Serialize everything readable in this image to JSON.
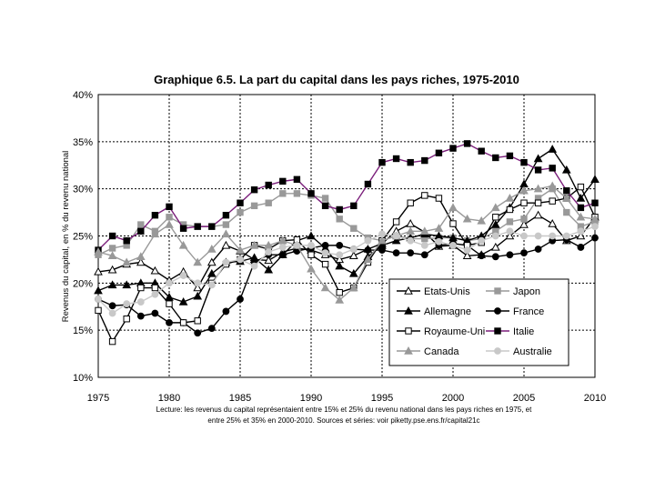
{
  "chart_data": {
    "type": "line",
    "title": "Graphique 6.5. La part du capital dans les pays riches, 1975-2010",
    "ylabel": "Revenus du capital, en % du revenu national",
    "xlabel": "",
    "xlim": [
      1975,
      2010
    ],
    "ylim": [
      0.1,
      0.4
    ],
    "xticks": [
      1975,
      1980,
      1985,
      1990,
      1995,
      2000,
      2005,
      2010
    ],
    "yticks": [
      0.1,
      0.15,
      0.2,
      0.25,
      0.3,
      0.35,
      0.4
    ],
    "ytick_labels": [
      "10%",
      "15%",
      "20%",
      "25%",
      "30%",
      "35%",
      "40%"
    ],
    "grid": true,
    "legend_position": "bottom-right",
    "note_line1": "Lecture: les revenus du capital représentaient entre 15% et 25% du revenu national dans les pays riches en 1975, et",
    "note_line2": "entre 25% et 35% en 2000-2010. Sources et séries: voir piketty.pse.ens.fr/capital21c",
    "x": [
      1975,
      1976,
      1977,
      1978,
      1979,
      1980,
      1981,
      1982,
      1983,
      1984,
      1985,
      1986,
      1987,
      1988,
      1989,
      1990,
      1991,
      1992,
      1993,
      1994,
      1995,
      1996,
      1997,
      1998,
      1999,
      2000,
      2001,
      2002,
      2003,
      2004,
      2005,
      2006,
      2007,
      2008,
      2009,
      2010
    ],
    "series": [
      {
        "name": "Etats-Unis",
        "marker": "triangle-open",
        "color": "#000000",
        "values": [
          0.212,
          0.214,
          0.22,
          0.222,
          0.213,
          0.203,
          0.212,
          0.195,
          0.222,
          0.24,
          0.234,
          0.225,
          0.224,
          0.233,
          0.237,
          0.235,
          0.23,
          0.225,
          0.229,
          0.236,
          0.242,
          0.255,
          0.263,
          0.254,
          0.239,
          0.24,
          0.229,
          0.23,
          0.238,
          0.25,
          0.262,
          0.272,
          0.263,
          0.245,
          0.25,
          0.27
        ]
      },
      {
        "name": "Japon",
        "marker": "square-filled",
        "color": "#999999",
        "values": [
          0.23,
          0.237,
          0.24,
          0.262,
          0.255,
          0.27,
          0.262,
          0.26,
          0.26,
          0.262,
          0.275,
          0.282,
          0.285,
          0.295,
          0.295,
          0.293,
          0.29,
          0.268,
          0.258,
          0.248,
          0.245,
          0.25,
          0.247,
          0.247,
          0.248,
          0.248,
          0.245,
          0.247,
          0.255,
          0.265,
          0.268,
          0.29,
          0.3,
          0.275,
          0.26,
          0.265
        ]
      },
      {
        "name": "Allemagne",
        "marker": "triangle-filled",
        "color": "#000000",
        "values": [
          0.192,
          0.198,
          0.198,
          0.2,
          0.2,
          0.185,
          0.18,
          0.186,
          0.21,
          0.222,
          0.223,
          0.227,
          0.214,
          0.23,
          0.245,
          0.25,
          0.237,
          0.218,
          0.21,
          0.228,
          0.24,
          0.245,
          0.248,
          0.252,
          0.25,
          0.248,
          0.245,
          0.25,
          0.262,
          0.28,
          0.305,
          0.332,
          0.342,
          0.32,
          0.29,
          0.31
        ]
      },
      {
        "name": "France",
        "marker": "circle-filled",
        "color": "#000000",
        "values": [
          0.183,
          0.176,
          0.177,
          0.165,
          0.168,
          0.158,
          0.158,
          0.147,
          0.152,
          0.17,
          0.183,
          0.222,
          0.23,
          0.23,
          0.234,
          0.237,
          0.24,
          0.24,
          0.236,
          0.235,
          0.235,
          0.232,
          0.232,
          0.23,
          0.24,
          0.242,
          0.24,
          0.229,
          0.228,
          0.23,
          0.232,
          0.236,
          0.245,
          0.246,
          0.238,
          0.248
        ]
      },
      {
        "name": "Royaume-Uni",
        "marker": "square-open",
        "color": "#000000",
        "values": [
          0.171,
          0.138,
          0.162,
          0.195,
          0.195,
          0.178,
          0.158,
          0.16,
          0.2,
          0.22,
          0.225,
          0.24,
          0.236,
          0.245,
          0.246,
          0.23,
          0.22,
          0.19,
          0.195,
          0.222,
          0.245,
          0.265,
          0.285,
          0.293,
          0.29,
          0.263,
          0.24,
          0.243,
          0.27,
          0.278,
          0.285,
          0.285,
          0.287,
          0.29,
          0.302,
          0.27
        ]
      },
      {
        "name": "Italie",
        "marker": "square-filled",
        "color": "#000000",
        "line_color": "#7b1f7b",
        "values": [
          0.235,
          0.25,
          0.245,
          0.255,
          0.272,
          0.281,
          0.258,
          0.26,
          0.26,
          0.272,
          0.285,
          0.299,
          0.304,
          0.308,
          0.31,
          0.295,
          0.282,
          0.278,
          0.282,
          0.305,
          0.328,
          0.332,
          0.328,
          0.33,
          0.338,
          0.343,
          0.348,
          0.34,
          0.333,
          0.335,
          0.328,
          0.32,
          0.322,
          0.298,
          0.28,
          0.285
        ]
      },
      {
        "name": "Canada",
        "marker": "triangle-filled",
        "color": "#999999",
        "values": [
          0.233,
          0.229,
          0.222,
          0.228,
          0.252,
          0.262,
          0.24,
          0.222,
          0.236,
          0.252,
          0.235,
          0.24,
          0.24,
          0.245,
          0.24,
          0.215,
          0.195,
          0.182,
          0.195,
          0.225,
          0.245,
          0.25,
          0.255,
          0.255,
          0.258,
          0.28,
          0.268,
          0.266,
          0.28,
          0.29,
          0.298,
          0.3,
          0.303,
          0.29,
          0.27,
          0.268
        ]
      },
      {
        "name": "Australie",
        "marker": "circle-filled",
        "color": "#c8c8c8",
        "values": [
          0.183,
          0.168,
          0.178,
          0.18,
          0.188,
          0.2,
          0.208,
          0.2,
          0.198,
          0.222,
          0.225,
          0.218,
          0.233,
          0.238,
          0.24,
          0.24,
          0.232,
          0.23,
          0.236,
          0.245,
          0.252,
          0.25,
          0.245,
          0.24,
          0.244,
          0.24,
          0.235,
          0.245,
          0.25,
          0.255,
          0.25,
          0.25,
          0.25,
          0.25,
          0.255,
          0.26
        ]
      }
    ]
  }
}
